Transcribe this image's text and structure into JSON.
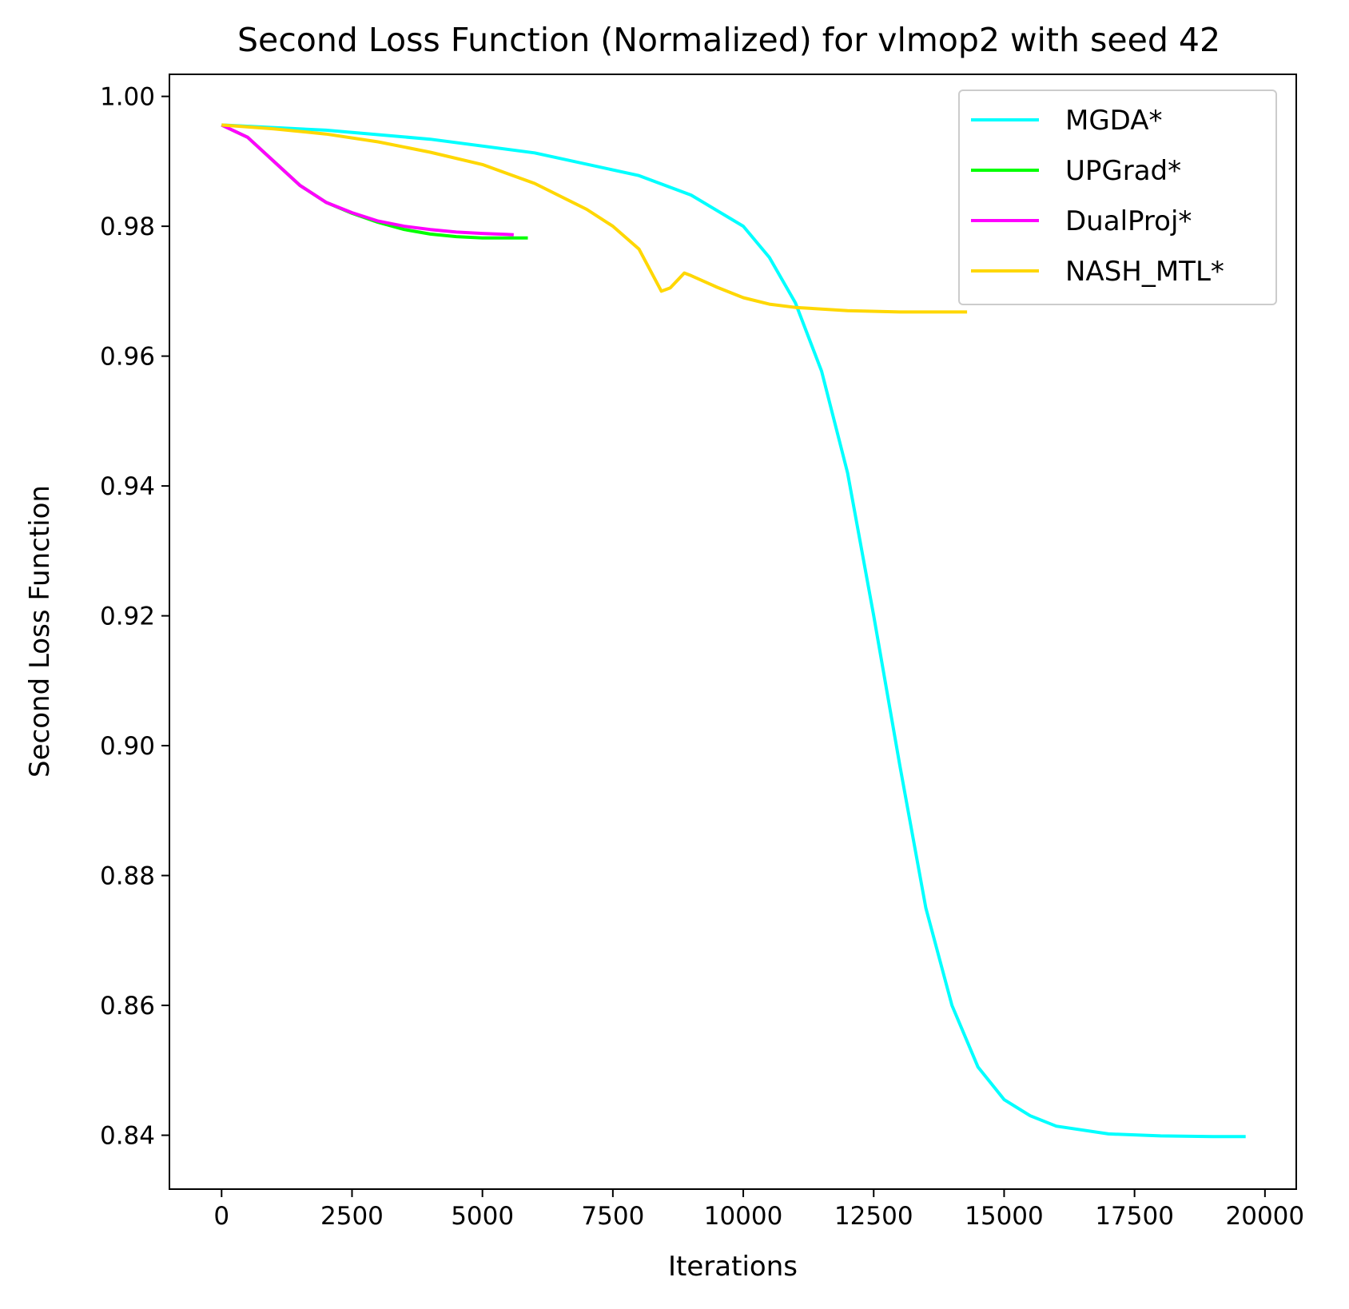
{
  "chart_data": {
    "type": "line",
    "title": "Second Loss Function (Normalized) for vlmop2 with seed 42",
    "xlabel": "Iterations",
    "ylabel": "Second Loss Function",
    "xlim": [
      -1000,
      20600
    ],
    "ylim": [
      0.8317,
      1.0034
    ],
    "xticks": [
      0,
      2500,
      5000,
      7500,
      10000,
      12500,
      15000,
      17500,
      20000
    ],
    "xtick_labels": [
      "0",
      "2500",
      "5000",
      "7500",
      "10000",
      "12500",
      "15000",
      "17500",
      "20000"
    ],
    "yticks": [
      0.84,
      0.86,
      0.88,
      0.9,
      0.92,
      0.94,
      0.96,
      0.98,
      1.0
    ],
    "ytick_labels": [
      "0.84",
      "0.86",
      "0.88",
      "0.90",
      "0.92",
      "0.94",
      "0.96",
      "0.98",
      "1.00"
    ],
    "grid": false,
    "legend_position": "top-right",
    "series": [
      {
        "name": "MGDA*",
        "color": "#00ffff",
        "x": [
          0,
          2000,
          4000,
          6000,
          8000,
          9000,
          10000,
          10500,
          11000,
          11500,
          12000,
          12500,
          13000,
          13500,
          14000,
          14500,
          15000,
          15500,
          16000,
          17000,
          18000,
          19000,
          19630
        ],
        "y": [
          0.9956,
          0.9948,
          0.9934,
          0.9913,
          0.9878,
          0.9848,
          0.98,
          0.9752,
          0.9682,
          0.9577,
          0.942,
          0.92,
          0.897,
          0.875,
          0.86,
          0.8505,
          0.8455,
          0.843,
          0.8414,
          0.8402,
          0.8399,
          0.8398,
          0.8398
        ]
      },
      {
        "name": "UPGrad*",
        "color": "#00ff00",
        "x": [
          0,
          500,
          1000,
          1500,
          2000,
          2500,
          3000,
          3500,
          4000,
          4500,
          5000,
          5500,
          5870
        ],
        "y": [
          0.9956,
          0.9937,
          0.99,
          0.9863,
          0.9837,
          0.982,
          0.9806,
          0.9795,
          0.9788,
          0.9784,
          0.9782,
          0.9782,
          0.9782
        ]
      },
      {
        "name": "DualProj*",
        "color": "#ff00ff",
        "x": [
          0,
          500,
          1000,
          1500,
          2000,
          2500,
          3000,
          3500,
          4000,
          4500,
          5000,
          5600
        ],
        "y": [
          0.9956,
          0.9937,
          0.99,
          0.9863,
          0.9837,
          0.9821,
          0.9808,
          0.98,
          0.9795,
          0.9791,
          0.9789,
          0.9787
        ]
      },
      {
        "name": "NASH_MTL*",
        "color": "#ffd700",
        "x": [
          0,
          1000,
          2000,
          3000,
          4000,
          5000,
          6000,
          7000,
          7500,
          8000,
          8430,
          8600,
          8870,
          9000,
          9500,
          10000,
          10500,
          11000,
          12000,
          13000,
          14290
        ],
        "y": [
          0.9956,
          0.995,
          0.9942,
          0.993,
          0.9914,
          0.9895,
          0.9866,
          0.9826,
          0.98,
          0.9765,
          0.97,
          0.9705,
          0.9728,
          0.9724,
          0.9706,
          0.969,
          0.968,
          0.9675,
          0.967,
          0.9668,
          0.9668
        ]
      }
    ]
  }
}
